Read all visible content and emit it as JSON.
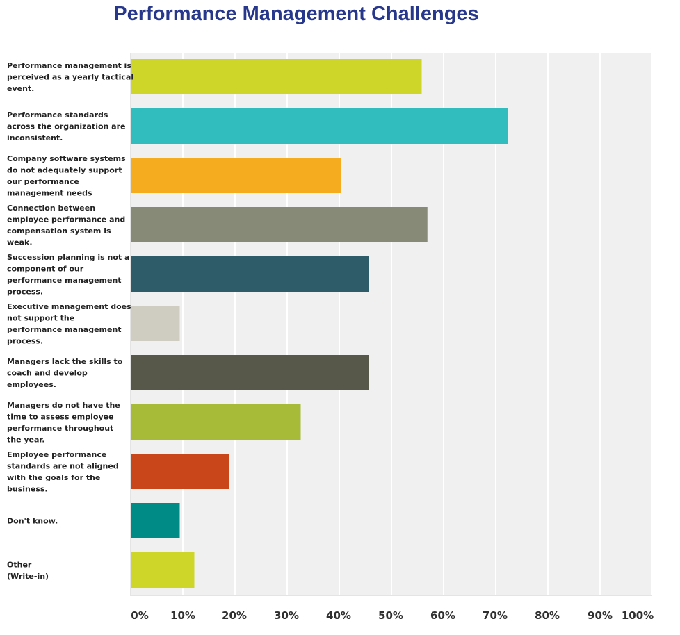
{
  "chart_data": {
    "type": "bar",
    "orientation": "horizontal",
    "title": "Performance Management Challenges",
    "xlim": [
      0,
      100
    ],
    "x_ticks": [
      "0%",
      "10%",
      "20%",
      "30%",
      "40%",
      "50%",
      "60%",
      "70%",
      "80%",
      "90%",
      "100%"
    ],
    "grid": true,
    "categories": [
      "Performance management is perceived as a yearly tactical event.",
      "Performance standards across the organization are inconsistent.",
      "Company software systems do not adequately support our performance management needs",
      "Connection between employee performance and compensation system is weak.",
      "Succession planning is not a component of our performance management process.",
      "Executive management does not support the performance management process.",
      "Managers lack the skills to coach and develop employees.",
      "Managers do not have the time to assess employee performance throughout the year.",
      "Employee performance standards are not aligned with the goals for the business.",
      "Don't know.",
      "Other (Write-in)"
    ],
    "category_lines": [
      [
        "Performance management is",
        "perceived as a yearly tactical",
        "event."
      ],
      [
        "Performance standards",
        "across the organization are",
        "inconsistent."
      ],
      [
        "Company software systems",
        "do not adequately support",
        "our performance",
        "management needs"
      ],
      [
        "Connection between",
        "employee performance and",
        "compensation system is",
        "weak."
      ],
      [
        "Succession planning is not a",
        "component of our",
        "performance management",
        "process."
      ],
      [
        "Executive management does",
        "not support the",
        "performance management",
        "process."
      ],
      [
        "Managers lack the skills to",
        "coach and develop",
        "employees."
      ],
      [
        "Managers do not have the",
        "time to assess employee",
        "performance throughout",
        "the year."
      ],
      [
        "Employee performance",
        "standards are not aligned",
        "with the goals for the",
        "business."
      ],
      [
        "Don't know."
      ],
      [
        "Other",
        "(Write-in)"
      ]
    ],
    "values": [
      55.8,
      72.3,
      40.3,
      56.9,
      45.6,
      9.4,
      45.6,
      32.6,
      18.9,
      9.4,
      12.2
    ],
    "colors": [
      "#cfd62a",
      "#31bdbd",
      "#f5ad1f",
      "#888a78",
      "#2e5d69",
      "#cfcdc1",
      "#58584a",
      "#a7bb38",
      "#c9461b",
      "#008b87",
      "#cfd62a"
    ]
  }
}
